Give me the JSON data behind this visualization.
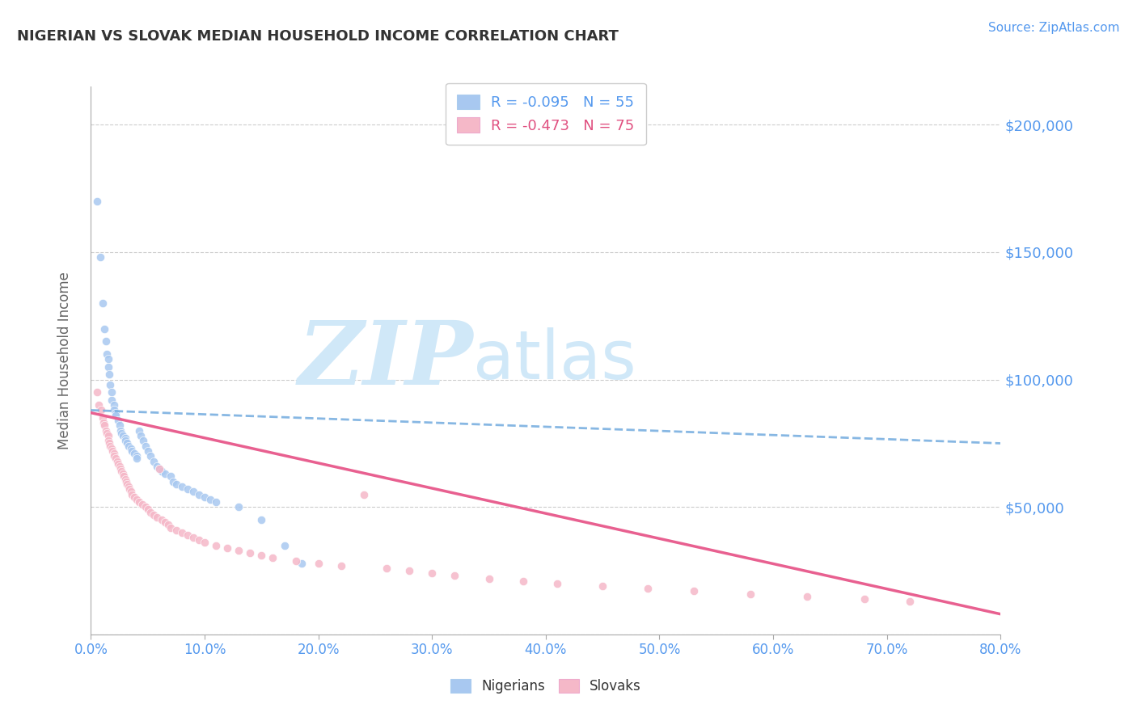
{
  "title": "NIGERIAN VS SLOVAK MEDIAN HOUSEHOLD INCOME CORRELATION CHART",
  "source_text": "Source: ZipAtlas.com",
  "ylabel": "Median Household Income",
  "xlim": [
    0.0,
    0.8
  ],
  "ylim": [
    0,
    215000
  ],
  "yticks": [
    0,
    50000,
    100000,
    150000,
    200000
  ],
  "ytick_labels": [
    "",
    "$50,000",
    "$100,000",
    "$150,000",
    "$200,000"
  ],
  "xtick_labels": [
    "0.0%",
    "10.0%",
    "20.0%",
    "30.0%",
    "40.0%",
    "50.0%",
    "60.0%",
    "70.0%",
    "80.0%"
  ],
  "xticks": [
    0.0,
    0.1,
    0.2,
    0.3,
    0.4,
    0.5,
    0.6,
    0.7,
    0.8
  ],
  "nigerian_color": "#a8c8f0",
  "slovak_color": "#f5b8c8",
  "nigerian_R": -0.095,
  "nigerian_N": 55,
  "slovak_R": -0.473,
  "slovak_N": 75,
  "legend_nigerian_color": "#5599ee",
  "legend_slovak_color": "#e05080",
  "axis_color": "#aaaaaa",
  "grid_color": "#cccccc",
  "ytick_label_color": "#5599ee",
  "xtick_label_color": "#5599ee",
  "title_color": "#333333",
  "watermark_text": "ZIPatlas",
  "watermark_color": "#d0e8f8",
  "background_color": "#ffffff",
  "nigerian_x": [
    0.005,
    0.008,
    0.01,
    0.012,
    0.013,
    0.014,
    0.015,
    0.015,
    0.016,
    0.017,
    0.018,
    0.018,
    0.02,
    0.02,
    0.022,
    0.022,
    0.024,
    0.025,
    0.026,
    0.027,
    0.028,
    0.03,
    0.03,
    0.032,
    0.033,
    0.035,
    0.036,
    0.038,
    0.04,
    0.04,
    0.042,
    0.044,
    0.046,
    0.048,
    0.05,
    0.052,
    0.055,
    0.058,
    0.06,
    0.062,
    0.065,
    0.07,
    0.072,
    0.075,
    0.08,
    0.085,
    0.09,
    0.095,
    0.1,
    0.105,
    0.11,
    0.13,
    0.15,
    0.17,
    0.185
  ],
  "nigerian_y": [
    170000,
    148000,
    130000,
    120000,
    115000,
    110000,
    108000,
    105000,
    102000,
    98000,
    95000,
    92000,
    90000,
    88000,
    87000,
    86000,
    84000,
    82000,
    80000,
    79000,
    78000,
    77000,
    76000,
    75000,
    74000,
    73000,
    72000,
    71000,
    70000,
    69000,
    80000,
    78000,
    76000,
    74000,
    72000,
    70000,
    68000,
    66000,
    65000,
    64000,
    63000,
    62000,
    60000,
    59000,
    58000,
    57000,
    56000,
    55000,
    54000,
    53000,
    52000,
    50000,
    45000,
    35000,
    28000
  ],
  "slovak_x": [
    0.005,
    0.007,
    0.009,
    0.01,
    0.011,
    0.012,
    0.013,
    0.014,
    0.015,
    0.015,
    0.016,
    0.017,
    0.018,
    0.019,
    0.02,
    0.02,
    0.022,
    0.023,
    0.024,
    0.025,
    0.026,
    0.027,
    0.028,
    0.029,
    0.03,
    0.031,
    0.032,
    0.033,
    0.034,
    0.035,
    0.036,
    0.038,
    0.04,
    0.042,
    0.045,
    0.048,
    0.05,
    0.052,
    0.055,
    0.058,
    0.06,
    0.062,
    0.065,
    0.068,
    0.07,
    0.075,
    0.08,
    0.085,
    0.09,
    0.095,
    0.1,
    0.11,
    0.12,
    0.13,
    0.14,
    0.15,
    0.16,
    0.18,
    0.2,
    0.22,
    0.24,
    0.26,
    0.28,
    0.3,
    0.32,
    0.35,
    0.38,
    0.41,
    0.45,
    0.49,
    0.53,
    0.58,
    0.63,
    0.68,
    0.72
  ],
  "slovak_y": [
    95000,
    90000,
    88000,
    85000,
    83000,
    82000,
    80000,
    79000,
    78000,
    76000,
    75000,
    74000,
    73000,
    72000,
    71000,
    70000,
    69000,
    68000,
    67000,
    66000,
    65000,
    64000,
    63000,
    62000,
    61000,
    60000,
    59000,
    58000,
    57000,
    56000,
    55000,
    54000,
    53000,
    52000,
    51000,
    50000,
    49000,
    48000,
    47000,
    46000,
    65000,
    45000,
    44000,
    43000,
    42000,
    41000,
    40000,
    39000,
    38000,
    37000,
    36000,
    35000,
    34000,
    33000,
    32000,
    31000,
    30000,
    29000,
    28000,
    27000,
    55000,
    26000,
    25000,
    24000,
    23000,
    22000,
    21000,
    20000,
    19000,
    18000,
    17000,
    16000,
    15000,
    14000,
    13000
  ]
}
